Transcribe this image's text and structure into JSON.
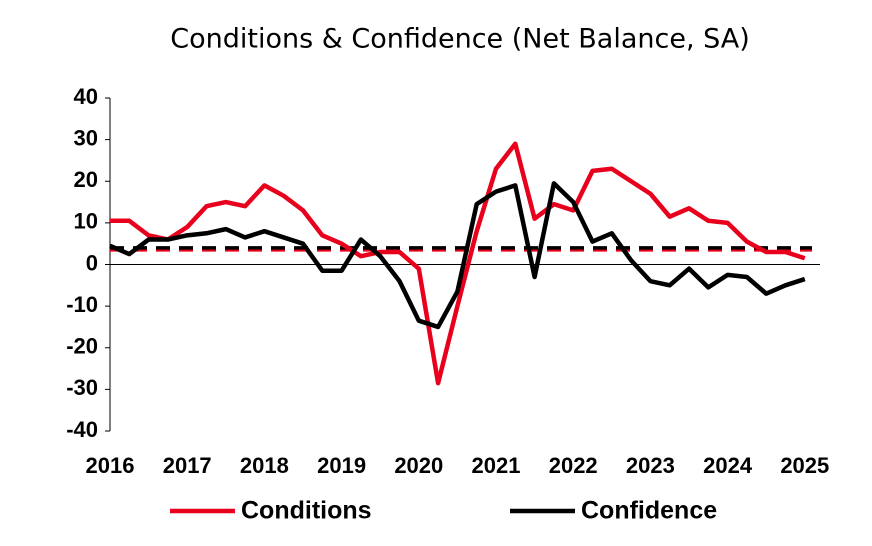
{
  "chart_data": {
    "type": "line",
    "title": "Conditions & Confidence (Net Balance, SA)",
    "categories": [
      "2016",
      null,
      null,
      null,
      "2017",
      null,
      null,
      null,
      "2018",
      null,
      null,
      null,
      "2019",
      null,
      null,
      null,
      "2020",
      null,
      null,
      null,
      "2021",
      null,
      null,
      null,
      "2022",
      null,
      null,
      null,
      "2023",
      null,
      null,
      null,
      "2024",
      null,
      null,
      null,
      "2025"
    ],
    "series": [
      {
        "name": "Conditions",
        "color": "#e8001c",
        "values": [
          10.5,
          10.5,
          7,
          6,
          9,
          14,
          15,
          14,
          19,
          16.5,
          13,
          7,
          5,
          2,
          3,
          3,
          -1,
          -28.5,
          -10,
          8,
          23,
          29,
          11,
          14.5,
          13,
          22.5,
          23,
          20,
          17,
          11.5,
          13.5,
          10.5,
          10,
          5.5,
          3,
          3,
          1.5
        ]
      },
      {
        "name": "Confidence",
        "color": "#000000",
        "values": [
          4.5,
          2.5,
          6,
          6,
          7,
          7.5,
          8.5,
          6.5,
          8,
          6.5,
          5,
          -1.5,
          -1.5,
          6,
          2,
          -4,
          -13.5,
          -15,
          -6.5,
          14.5,
          17.5,
          19,
          -3,
          19.5,
          15,
          5.5,
          7.5,
          1,
          -4,
          -5,
          -1,
          -5.5,
          -2.5,
          -3,
          -7,
          -5,
          -3.5
        ]
      }
    ],
    "hlines": [
      {
        "value": 3.5,
        "color": "#e8001c"
      },
      {
        "value": 4,
        "color": "#000000"
      }
    ],
    "ylim": [
      -40,
      40
    ],
    "yticks": [
      -40,
      -30,
      -20,
      -10,
      0,
      10,
      20,
      30,
      40
    ],
    "grid": false
  }
}
